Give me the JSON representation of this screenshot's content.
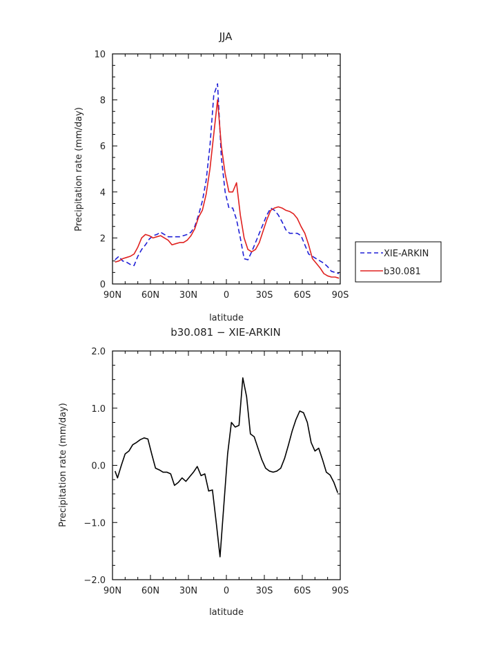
{
  "chart_data": [
    {
      "type": "line",
      "title": "JJA",
      "xlabel": "latitude",
      "ylabel": "Precipitation rate (mm/day)",
      "xlim": [
        90,
        -90
      ],
      "ylim": [
        0,
        10
      ],
      "xticks": [
        {
          "value": 90,
          "label": "90N"
        },
        {
          "value": 60,
          "label": "60N"
        },
        {
          "value": 30,
          "label": "30N"
        },
        {
          "value": 0,
          "label": "0"
        },
        {
          "value": -30,
          "label": "30S"
        },
        {
          "value": -60,
          "label": "60S"
        },
        {
          "value": -90,
          "label": "90S"
        }
      ],
      "yticks": [
        {
          "value": 0,
          "label": "0"
        },
        {
          "value": 2,
          "label": "2"
        },
        {
          "value": 4,
          "label": "4"
        },
        {
          "value": 6,
          "label": "6"
        },
        {
          "value": 8,
          "label": "8"
        },
        {
          "value": 10,
          "label": "10"
        }
      ],
      "legend_placement": "right",
      "series": [
        {
          "name": "XIE-ARKIN",
          "color": "#1f1fd6",
          "dash": "dashed",
          "x": [
            88,
            85,
            82,
            79,
            76,
            73,
            70,
            67,
            64,
            61,
            58,
            55,
            52,
            49,
            46,
            43,
            40,
            37,
            34,
            31,
            28,
            25,
            22,
            19,
            16,
            13,
            10,
            7,
            4,
            1,
            -2,
            -5,
            -8,
            -11,
            -14,
            -17,
            -20,
            -23,
            -26,
            -29,
            -32,
            -35,
            -38,
            -41,
            -44,
            -47,
            -50,
            -53,
            -56,
            -59,
            -62,
            -65,
            -68,
            -71,
            -74,
            -77,
            -80,
            -83,
            -86,
            -89
          ],
          "y": [
            1.05,
            1.2,
            1.0,
            0.95,
            0.85,
            0.8,
            1.2,
            1.5,
            1.7,
            1.95,
            2.1,
            2.15,
            2.25,
            2.15,
            2.05,
            2.05,
            2.05,
            2.05,
            2.1,
            2.15,
            2.25,
            2.5,
            3.0,
            3.6,
            4.5,
            6.0,
            8.2,
            8.7,
            5.5,
            4.0,
            3.3,
            3.3,
            2.8,
            2.0,
            1.1,
            1.05,
            1.4,
            1.8,
            2.2,
            2.6,
            3.0,
            3.3,
            3.2,
            3.0,
            2.7,
            2.35,
            2.2,
            2.2,
            2.2,
            2.1,
            1.7,
            1.3,
            1.2,
            1.1,
            1.0,
            0.9,
            0.75,
            0.55,
            0.5,
            0.45
          ]
        },
        {
          "name": "b30.081",
          "color": "#e0201e",
          "dash": "solid",
          "x": [
            88,
            85,
            82,
            79,
            76,
            73,
            70,
            67,
            64,
            61,
            58,
            55,
            52,
            49,
            46,
            43,
            40,
            37,
            34,
            31,
            28,
            25,
            22,
            19,
            16,
            13,
            10,
            7,
            4,
            1,
            -2,
            -5,
            -8,
            -11,
            -14,
            -17,
            -20,
            -23,
            -26,
            -29,
            -32,
            -35,
            -38,
            -41,
            -44,
            -47,
            -50,
            -53,
            -56,
            -59,
            -62,
            -65,
            -68,
            -71,
            -74,
            -77,
            -80,
            -83,
            -86,
            -89
          ],
          "y": [
            0.95,
            1.0,
            1.1,
            1.15,
            1.2,
            1.3,
            1.6,
            2.0,
            2.15,
            2.1,
            2.0,
            2.05,
            2.1,
            2.0,
            1.9,
            1.7,
            1.75,
            1.8,
            1.8,
            1.9,
            2.1,
            2.4,
            2.9,
            3.2,
            3.9,
            5.0,
            6.5,
            8.0,
            6.0,
            4.8,
            4.0,
            4.0,
            4.4,
            3.0,
            2.0,
            1.5,
            1.4,
            1.5,
            1.8,
            2.3,
            2.8,
            3.2,
            3.3,
            3.35,
            3.3,
            3.2,
            3.15,
            3.05,
            2.85,
            2.5,
            2.2,
            1.7,
            1.1,
            0.9,
            0.7,
            0.45,
            0.35,
            0.3,
            0.3,
            0.25
          ]
        }
      ]
    },
    {
      "type": "line",
      "title": "b30.081 − XIE-ARKIN",
      "xlabel": "latitude",
      "ylabel": "Precipitation rate (mm/day)",
      "xlim": [
        90,
        -90
      ],
      "ylim": [
        -2,
        2
      ],
      "xticks": [
        {
          "value": 90,
          "label": "90N"
        },
        {
          "value": 60,
          "label": "60N"
        },
        {
          "value": 30,
          "label": "30N"
        },
        {
          "value": 0,
          "label": "0"
        },
        {
          "value": -30,
          "label": "30S"
        },
        {
          "value": -60,
          "label": "60S"
        },
        {
          "value": -90,
          "label": "90S"
        }
      ],
      "yticks": [
        {
          "value": -2,
          "label": "−2.0"
        },
        {
          "value": -1,
          "label": "−1.0"
        },
        {
          "value": 0,
          "label": "0.0"
        },
        {
          "value": 1,
          "label": "1.0"
        },
        {
          "value": 2,
          "label": "2.0"
        }
      ],
      "series": [
        {
          "color": "#000000",
          "dash": "solid",
          "x": [
            88,
            86,
            83,
            80,
            77,
            74,
            71,
            68,
            65,
            62,
            59,
            56,
            53,
            50,
            47,
            44,
            41,
            38,
            35,
            32,
            29,
            26,
            23,
            20,
            17,
            14,
            11,
            8,
            5,
            2,
            -1,
            -4,
            -7,
            -10,
            -13,
            -16,
            -19,
            -22,
            -25,
            -28,
            -31,
            -34,
            -37,
            -40,
            -43,
            -46,
            -49,
            -52,
            -55,
            -58,
            -61,
            -64,
            -67,
            -70,
            -73,
            -76,
            -79,
            -82,
            -85,
            -88
          ],
          "y": [
            -0.1,
            -0.22,
            0.0,
            0.2,
            0.25,
            0.36,
            0.4,
            0.45,
            0.48,
            0.46,
            0.2,
            -0.05,
            -0.08,
            -0.12,
            -0.12,
            -0.15,
            -0.35,
            -0.3,
            -0.22,
            -0.28,
            -0.2,
            -0.12,
            -0.02,
            -0.18,
            -0.15,
            -0.45,
            -0.43,
            -1.0,
            -1.6,
            -0.7,
            0.2,
            0.75,
            0.67,
            0.7,
            1.53,
            1.2,
            0.55,
            0.5,
            0.3,
            0.1,
            -0.05,
            -0.1,
            -0.12,
            -0.1,
            -0.05,
            0.12,
            0.35,
            0.6,
            0.8,
            0.95,
            0.92,
            0.75,
            0.4,
            0.25,
            0.3,
            0.1,
            -0.12,
            -0.17,
            -0.3,
            -0.48
          ]
        }
      ]
    }
  ]
}
